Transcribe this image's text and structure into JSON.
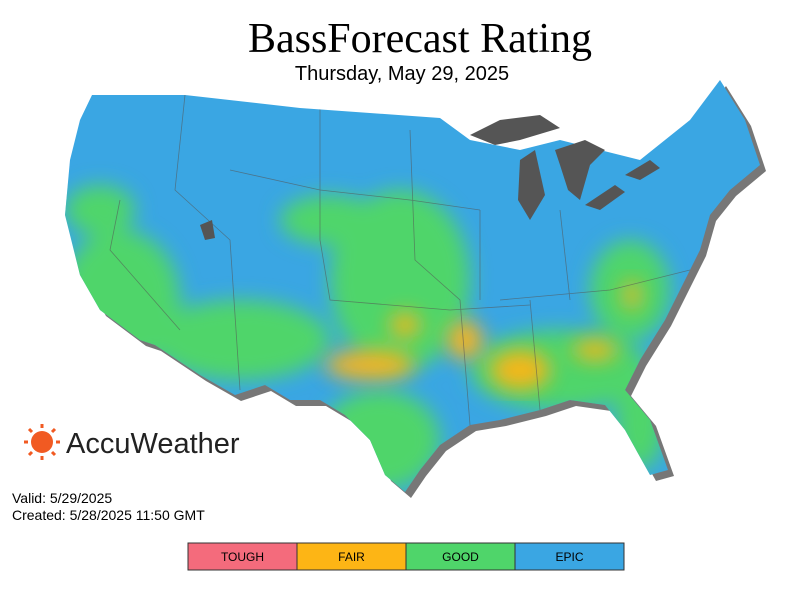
{
  "header": {
    "title": "BassForecast Rating",
    "subtitle": "Thursday, May 29, 2025"
  },
  "logo": {
    "text": "AccuWeather"
  },
  "footer": {
    "valid": "Valid: 5/29/2025",
    "created": "Created: 5/28/2025 11:50 GMT"
  },
  "legend": [
    {
      "label": "TOUGH",
      "color": "#f46b7c"
    },
    {
      "label": "FAIR",
      "color": "#fdb515"
    },
    {
      "label": "GOOD",
      "color": "#4fd56a"
    },
    {
      "label": "EPIC",
      "color": "#3aa6e3"
    }
  ]
}
